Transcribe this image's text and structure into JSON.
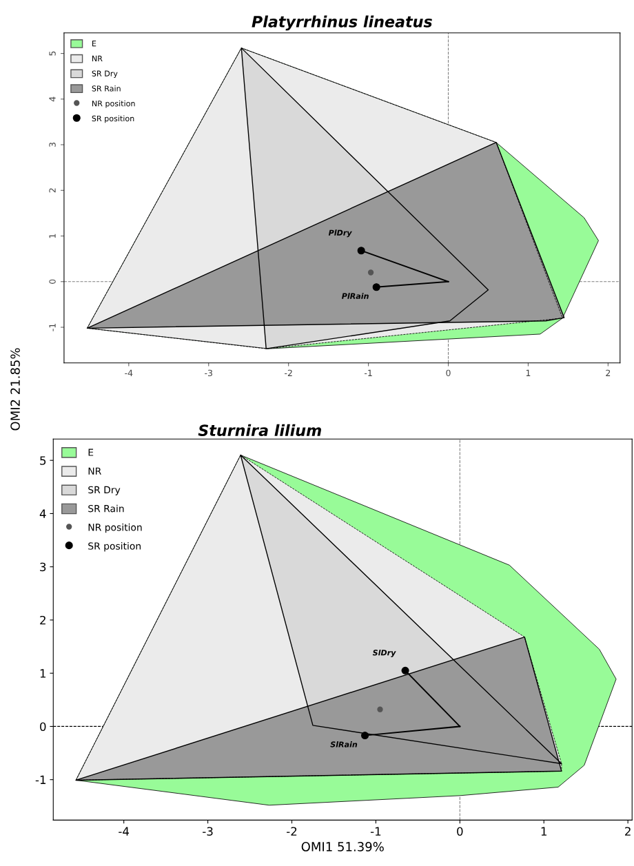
{
  "chart_data": [
    {
      "type": "area",
      "title": "Platyrrhinus lineatus",
      "ylabel": "OMI2 21.85%",
      "xlim": [
        -4.81,
        2.15
      ],
      "ylim": [
        -1.78,
        5.45
      ],
      "xticks": [
        -4,
        -3,
        -2,
        -1,
        0,
        1,
        2
      ],
      "yticks": [
        -1,
        0,
        1,
        2,
        3,
        4,
        5
      ],
      "grid": false,
      "legend": "top left",
      "ref_lines": [
        {
          "axis": "x",
          "value": 0,
          "line_style": "dashed",
          "color": "#808080"
        },
        {
          "axis": "y",
          "value": 0,
          "line_style": "dashed",
          "color": "#808080"
        }
      ],
      "series": [
        {
          "name": "E",
          "color": "#98fb98",
          "x": [
            -4.52,
            -2.59,
            0.6,
            1.7,
            1.88,
            1.43,
            1.15,
            -2.25
          ],
          "values": [
            -1.02,
            5.12,
            3.05,
            1.4,
            0.9,
            -0.8,
            -1.15,
            -1.47
          ]
        },
        {
          "name": "NR",
          "color": "#ebebeb",
          "line_style": "dashed",
          "x": [
            -4.52,
            -2.59,
            0.6,
            1.43,
            -2.28
          ],
          "values": [
            -1.02,
            5.12,
            3.05,
            -0.8,
            -1.47
          ]
        },
        {
          "name": "SR Dry",
          "color": "#d9d9d9",
          "x": [
            -2.59,
            0.5,
            0.02,
            -2.28
          ],
          "values": [
            5.12,
            -0.18,
            -0.86,
            -1.47
          ]
        },
        {
          "name": "SR Rain",
          "color": "#999999",
          "x": [
            -4.52,
            0.6,
            1.45,
            1.22
          ],
          "values": [
            -1.02,
            3.05,
            -0.79,
            -0.86
          ]
        },
        {
          "type": "line",
          "color": "#000000",
          "x": [
            0,
            -1.09
          ],
          "values": [
            0,
            0.68
          ]
        },
        {
          "type": "line",
          "color": "#000000",
          "x": [
            0,
            -0.9
          ],
          "values": [
            0,
            -0.12
          ]
        },
        {
          "name": "NR position",
          "type": "scatter",
          "color": "#555555",
          "marker": "circle",
          "x": [
            -0.97
          ],
          "values": [
            0.2
          ]
        },
        {
          "name": "SR position",
          "type": "scatter",
          "color": "#000000",
          "marker": "circle",
          "x": [
            -1.09,
            -0.9
          ],
          "values": [
            0.68,
            -0.12
          ]
        }
      ],
      "annotations": [
        {
          "text": "PlDry",
          "x": -1.09,
          "y": 0.68
        },
        {
          "text": "PlRain",
          "x": -0.9,
          "y": -0.12
        }
      ]
    },
    {
      "type": "area",
      "title": "Sturnira lilium",
      "xlabel": "OMI1 51.39%",
      "xlim": [
        -4.84,
        2.05
      ],
      "ylim": [
        -1.76,
        5.4
      ],
      "xticks": [
        -4,
        -3,
        -2,
        -1,
        0,
        1,
        2
      ],
      "yticks": [
        -1,
        0,
        1,
        2,
        3,
        4,
        5
      ],
      "grid": false,
      "legend": "top left",
      "ref_lines": [
        {
          "axis": "x",
          "value": 0,
          "line_style": "dashed",
          "color": "#808080"
        },
        {
          "axis": "y",
          "value": 0,
          "line_style": "dashed",
          "color": "#000000"
        }
      ],
      "series": [
        {
          "name": "E",
          "color": "#98fb98",
          "x": [
            -4.57,
            -2.61,
            0.59,
            1.66,
            1.86,
            1.48,
            1.17,
            0.0,
            -2.27
          ],
          "values": [
            -1.01,
            5.1,
            3.03,
            1.45,
            0.89,
            -0.73,
            -1.14,
            -1.3,
            -1.48
          ]
        },
        {
          "name": "NR",
          "color": "#ebebeb",
          "line_style": "dashed",
          "x": [
            -4.57,
            -2.61,
            0.77,
            1.21,
            1.21
          ],
          "values": [
            -1.01,
            5.1,
            1.68,
            -0.7,
            -0.84
          ]
        },
        {
          "name": "SR Dry",
          "color": "#d9d9d9",
          "x": [
            -2.61,
            1.21,
            -1.75
          ],
          "values": [
            5.1,
            -0.7,
            0.02
          ]
        },
        {
          "name": "SR Rain",
          "color": "#999999",
          "x": [
            -4.57,
            0.77,
            1.21
          ],
          "values": [
            -1.01,
            1.68,
            -0.84
          ]
        },
        {
          "type": "line",
          "color": "#000000",
          "x": [
            0,
            -0.65
          ],
          "values": [
            0,
            1.05
          ]
        },
        {
          "type": "line",
          "color": "#000000",
          "x": [
            0,
            -1.13
          ],
          "values": [
            0,
            -0.17
          ]
        },
        {
          "name": "NR position",
          "type": "scatter",
          "color": "#555555",
          "marker": "circle",
          "x": [
            -0.95
          ],
          "values": [
            0.32
          ]
        },
        {
          "name": "SR position",
          "type": "scatter",
          "color": "#000000",
          "marker": "circle",
          "x": [
            -0.65,
            -1.13
          ],
          "values": [
            1.05,
            -0.17
          ]
        }
      ],
      "annotations": [
        {
          "text": "SlDry",
          "x": -0.65,
          "y": 1.05
        },
        {
          "text": "SlRain",
          "x": -1.13,
          "y": -0.17
        }
      ]
    }
  ]
}
